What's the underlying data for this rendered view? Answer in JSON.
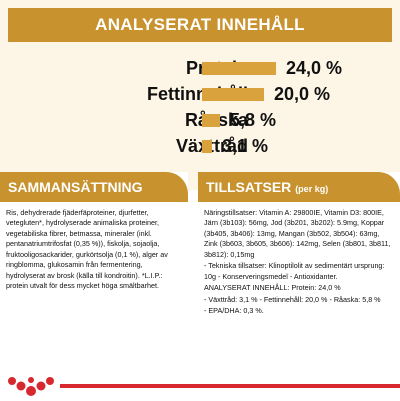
{
  "header": {
    "title": "ANALYSERAT INNEHÅLL"
  },
  "nutrients": [
    {
      "label": "Protein",
      "value": "24,0 %",
      "percent": 24.0
    },
    {
      "label": "Fettinnehåll",
      "value": "20,0 %",
      "percent": 20.0
    },
    {
      "label": "Råaska",
      "value": "5,8 %",
      "percent": 5.8
    },
    {
      "label": "Växttråd",
      "value": "3,1 %",
      "percent": 3.1
    }
  ],
  "composition": {
    "title": "SAMMANSÄTTNING",
    "text": "Ris, dehydrerade fjäderfäproteiner, djurfetter, vetegluten*, hydrolyserade animaliska proteiner, vegetabiliska fibrer, betmassa, mineraler (inkl. pentanatriumtrifosfat (0,35 %)), fiskolja, sojaolja, fruktooligosackarider, gurkörtsolja (0,1 %), alger av ringblomma, glukosamin från fermentering, hydrolyserat av brosk (källa till kondroitin). *L.I.P.: protein utvalt för dess mycket höga smältbarhet."
  },
  "additives": {
    "title": "TILLSATSER",
    "title_sub": "(per kg)",
    "lines": [
      "Näringstillsatser: Vitamin A: 29800IE, Vitamin D3: 800IE, Järn (3b103): 56mg, Jod (3b201, 3b202): 5.9mg, Koppar (3b405, 3b406): 13mg, Mangan (3b502, 3b504): 63mg, Zink (3b603, 3b605, 3b606): 142mg, Selen (3b801, 3b811, 3b812): 0,15mg",
      "- Tekniska tillsatser: Klinoptilolit av sedimentärt ursprung: 10g - Konserveringsmedel - Antioxidanter.",
      "ANALYSERAT INNEHÅLL: Protein: 24,0 %",
      "- Växttråd: 3,1 % - Fettinnehåll: 20,0 % - Råaska: 5,8 %",
      "- EPA/DHA: 0,3 %."
    ]
  },
  "colors": {
    "accent": "#c8922e",
    "bar": "#d9a23c",
    "panel": "#fdf6e7",
    "brand_red": "#d7282f"
  },
  "logo": {
    "icon": "royal-canin-crown-logo"
  }
}
